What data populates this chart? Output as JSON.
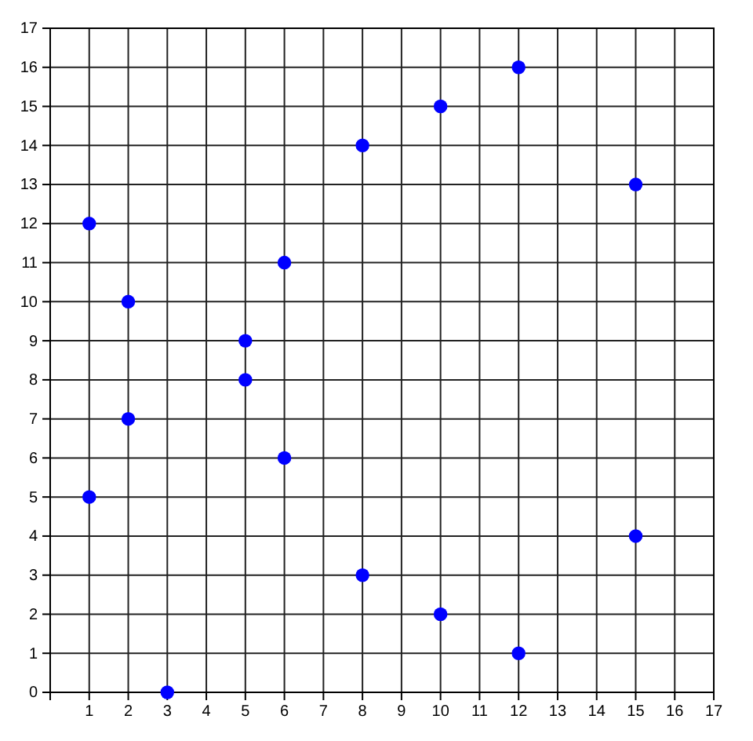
{
  "chart_data": {
    "type": "scatter",
    "xlim": [
      0,
      17
    ],
    "ylim": [
      0,
      17
    ],
    "xticks": [
      1,
      2,
      3,
      4,
      5,
      6,
      7,
      8,
      9,
      10,
      11,
      12,
      13,
      14,
      15,
      16,
      17
    ],
    "yticks": [
      0,
      1,
      2,
      3,
      4,
      5,
      6,
      7,
      8,
      9,
      10,
      11,
      12,
      13,
      14,
      15,
      16,
      17
    ],
    "grid": true,
    "marker": "circle",
    "series": [
      {
        "color": "#0000ff",
        "x": [
          1,
          1,
          2,
          2,
          3,
          5,
          5,
          6,
          6,
          8,
          8,
          10,
          10,
          12,
          12,
          15,
          15
        ],
        "values": [
          12,
          5,
          10,
          7,
          0,
          9,
          8,
          11,
          6,
          14,
          3,
          15,
          2,
          16,
          1,
          13,
          4
        ]
      }
    ]
  }
}
